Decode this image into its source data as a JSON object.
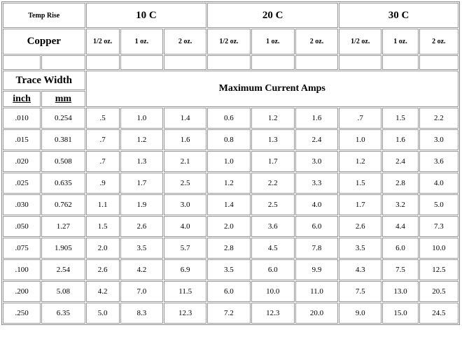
{
  "table": {
    "temp_rise_label": "Temp Rise",
    "temperature_rises": [
      "10 C",
      "20 C",
      "30 C"
    ],
    "copper_label": "Copper",
    "copper_weights": [
      "1/2 oz.",
      "1 oz.",
      "2 oz.",
      "1/2 oz.",
      "1 oz.",
      "2 oz.",
      "1/2 oz.",
      "1 oz.",
      "2 oz."
    ],
    "trace_width_label": "Trace Width",
    "max_current_label": "Maximum Current Amps",
    "unit_headers": [
      "inch",
      "mm"
    ],
    "rows": [
      [
        ".010",
        "0.254",
        ".5",
        "1.0",
        "1.4",
        "0.6",
        "1.2",
        "1.6",
        ".7",
        "1.5",
        "2.2"
      ],
      [
        ".015",
        "0.381",
        ".7",
        "1.2",
        "1.6",
        "0.8",
        "1.3",
        "2.4",
        "1.0",
        "1.6",
        "3.0"
      ],
      [
        ".020",
        "0.508",
        ".7",
        "1.3",
        "2.1",
        "1.0",
        "1.7",
        "3.0",
        "1.2",
        "2.4",
        "3.6"
      ],
      [
        ".025",
        "0.635",
        ".9",
        "1.7",
        "2.5",
        "1.2",
        "2.2",
        "3.3",
        "1.5",
        "2.8",
        "4.0"
      ],
      [
        ".030",
        "0.762",
        "1.1",
        "1.9",
        "3.0",
        "1.4",
        "2.5",
        "4.0",
        "1.7",
        "3.2",
        "5.0"
      ],
      [
        ".050",
        "1.27",
        "1.5",
        "2.6",
        "4.0",
        "2.0",
        "3.6",
        "6.0",
        "2.6",
        "4.4",
        "7.3"
      ],
      [
        ".075",
        "1.905",
        "2.0",
        "3.5",
        "5.7",
        "2.8",
        "4.5",
        "7.8",
        "3.5",
        "6.0",
        "10.0"
      ],
      [
        ".100",
        "2.54",
        "2.6",
        "4.2",
        "6.9",
        "3.5",
        "6.0",
        "9.9",
        "4.3",
        "7.5",
        "12.5"
      ],
      [
        ".200",
        "5.08",
        "4.2",
        "7.0",
        "11.5",
        "6.0",
        "10.0",
        "11.0",
        "7.5",
        "13.0",
        "20.5"
      ],
      [
        ".250",
        "6.35",
        "5.0",
        "8.3",
        "12.3",
        "7.2",
        "12.3",
        "20.0",
        "9.0",
        "15.0",
        "24.5"
      ]
    ]
  }
}
